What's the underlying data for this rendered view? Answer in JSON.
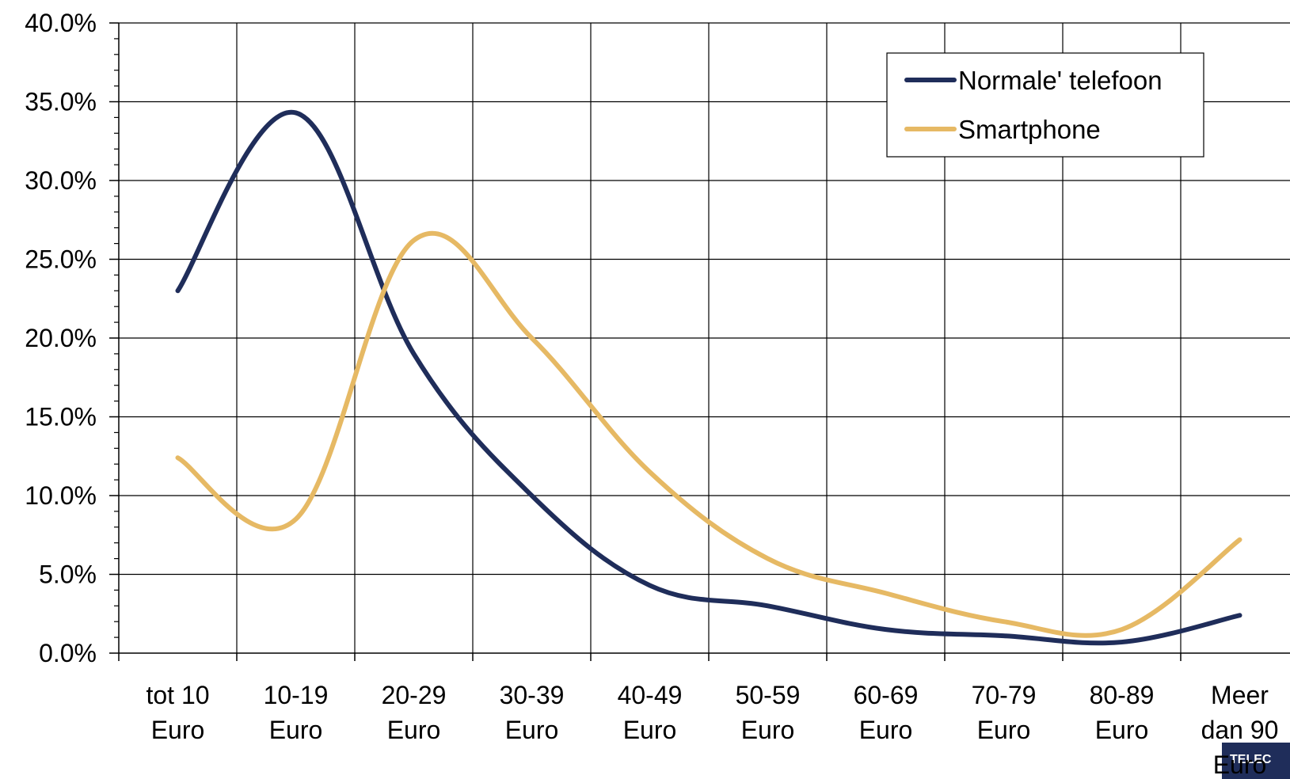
{
  "chart_data": {
    "type": "line",
    "title": "",
    "xlabel": "",
    "ylabel": "",
    "categories": [
      [
        "tot 10",
        "Euro"
      ],
      [
        "10-19",
        "Euro"
      ],
      [
        "20-29",
        "Euro"
      ],
      [
        "30-39",
        "Euro"
      ],
      [
        "40-49",
        "Euro"
      ],
      [
        "50-59",
        "Euro"
      ],
      [
        "60-69",
        "Euro"
      ],
      [
        "70-79",
        "Euro"
      ],
      [
        "80-89",
        "Euro"
      ],
      [
        "Meer",
        "dan 90",
        "Euro"
      ]
    ],
    "series": [
      {
        "name": "Normale' telefoon",
        "color": "#1f2d5a",
        "values": [
          23.0,
          34.3,
          19.0,
          10.0,
          4.3,
          3.0,
          1.5,
          1.1,
          0.7,
          2.4
        ]
      },
      {
        "name": "Smartphone",
        "color": "#e6b964",
        "values": [
          12.4,
          8.5,
          26.2,
          20.0,
          11.5,
          6.0,
          3.8,
          2.0,
          1.5,
          7.2
        ]
      }
    ],
    "ylim": [
      0,
      40
    ],
    "yticks": [
      "0.0%",
      "5.0%",
      "10.0%",
      "15.0%",
      "20.0%",
      "25.0%",
      "30.0%",
      "35.0%",
      "40.0%"
    ],
    "grid": true,
    "smooth": true,
    "legend_position": "top-right"
  },
  "logo": {
    "text": "TELEC",
    "color": "#1f2d5a"
  }
}
